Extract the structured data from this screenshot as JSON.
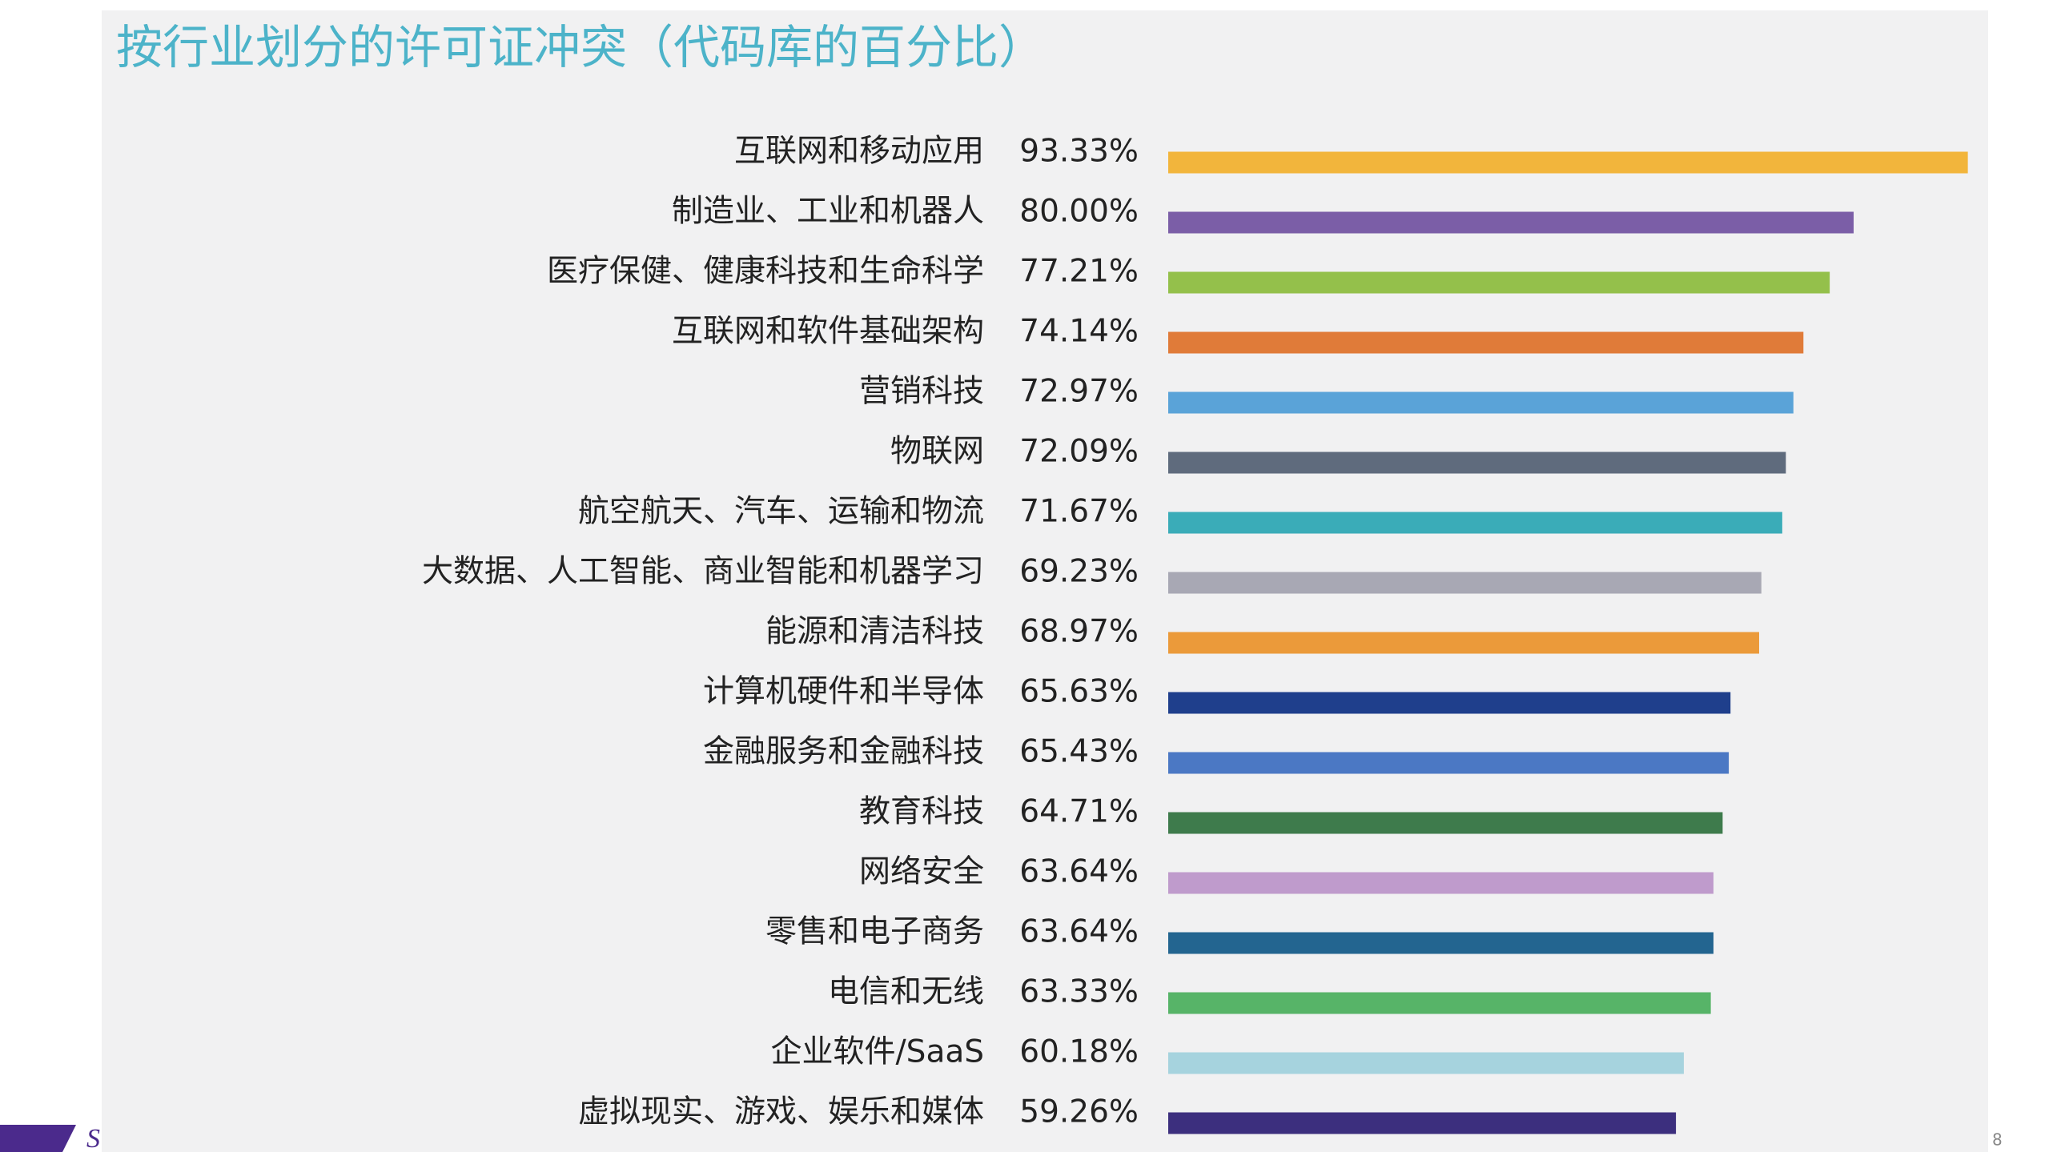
{
  "chart_data": {
    "type": "hbar",
    "title": "按行业划分的许可证冲突（代码库的百分比）",
    "categories": [
      "互联网和移动应用",
      "制造业、工业和机器人",
      "医疗保健、健康科技和生命科学",
      "互联网和软件基础架构",
      "营销科技",
      "物联网",
      "航空航天、汽车、运输和物流",
      "大数据、人工智能、商业智能和机器学习",
      "能源和清洁科技",
      "计算机硬件和半导体",
      "金融服务和金融科技",
      "教育科技",
      "网络安全",
      "零售和电子商务",
      "电信和无线",
      "企业软件/SaaS",
      "虚拟现实、游戏、娱乐和媒体"
    ],
    "values": [
      93.33,
      80.0,
      77.21,
      74.14,
      72.97,
      72.09,
      71.67,
      69.23,
      68.97,
      65.63,
      65.43,
      64.71,
      63.64,
      63.64,
      63.33,
      60.18,
      59.26
    ],
    "value_labels": [
      "93.33%",
      "80.00%",
      "77.21%",
      "74.14%",
      "72.97%",
      "72.09%",
      "71.67%",
      "69.23%",
      "68.97%",
      "65.63%",
      "65.43%",
      "64.71%",
      "63.64%",
      "63.64%",
      "63.33%",
      "60.18%",
      "59.26%"
    ],
    "colors": [
      "#f2b53c",
      "#7b5ea7",
      "#94c04b",
      "#e07b39",
      "#5aa3d8",
      "#5f6b7d",
      "#3aacb8",
      "#a8a8b4",
      "#eb9a3a",
      "#1f3f8c",
      "#4b78c4",
      "#3e7b4c",
      "#bf9bcc",
      "#236590",
      "#57b468",
      "#a6d3de",
      "#3c2f7e"
    ]
  },
  "footer": {
    "logo": "S",
    "page_number": "8"
  }
}
